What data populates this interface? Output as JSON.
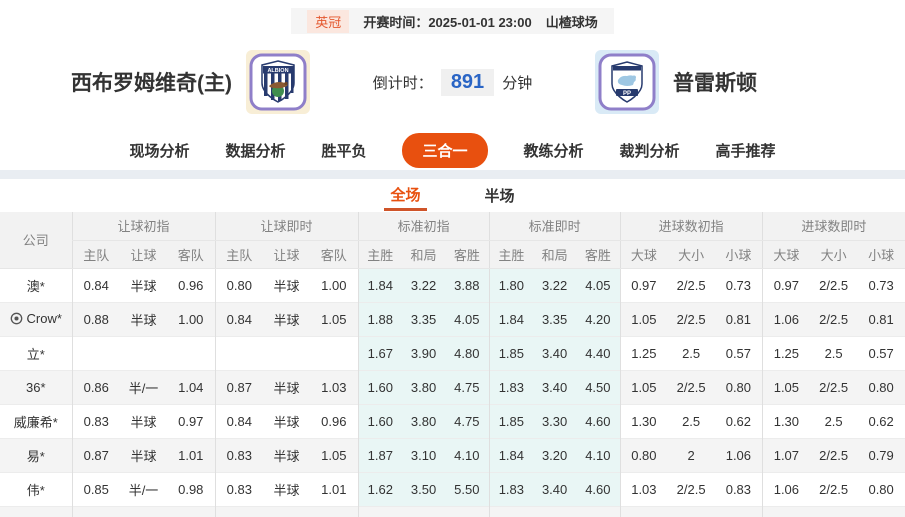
{
  "colors": {
    "accent": "#e8500f",
    "link_blue": "#2a65c5",
    "highlight_cyan": "#e9f6f5",
    "badge_bg": "#fbe7df"
  },
  "top_bar": {
    "league": "英冠",
    "kickoff_label": "开赛时间：",
    "kickoff_time": "2025-01-01 23:00",
    "venue": "山楂球场"
  },
  "match": {
    "home_name": "西布罗姆维奇(主)",
    "away_name": "普雷斯顿",
    "countdown_label": "倒计时：",
    "countdown_value": "891",
    "countdown_unit": "分钟"
  },
  "nav": {
    "items": [
      {
        "label": "现场分析",
        "active": false
      },
      {
        "label": "数据分析",
        "active": false
      },
      {
        "label": "胜平负",
        "active": false
      },
      {
        "label": "三合一",
        "active": true
      },
      {
        "label": "教练分析",
        "active": false
      },
      {
        "label": "裁判分析",
        "active": false
      },
      {
        "label": "高手推荐",
        "active": false
      }
    ]
  },
  "subtabs": {
    "items": [
      {
        "label": "全场",
        "active": true
      },
      {
        "label": "半场",
        "active": false
      }
    ]
  },
  "table": {
    "company_header": "公司",
    "groups": [
      {
        "label": "让球初指",
        "cols": [
          "主队",
          "让球",
          "客队"
        ]
      },
      {
        "label": "让球即时",
        "cols": [
          "主队",
          "让球",
          "客队"
        ]
      },
      {
        "label": "标准初指",
        "cols": [
          "主胜",
          "和局",
          "客胜"
        ]
      },
      {
        "label": "标准即时",
        "cols": [
          "主胜",
          "和局",
          "客胜"
        ]
      },
      {
        "label": "进球数初指",
        "cols": [
          "大球",
          "大小",
          "小球"
        ]
      },
      {
        "label": "进球数即时",
        "cols": [
          "大球",
          "大小",
          "小球"
        ]
      }
    ],
    "rows": [
      {
        "company": "澳*",
        "has_icon": false,
        "handicap_initial": [
          "0.84",
          "半球",
          "0.96"
        ],
        "handicap_live": [
          "0.80",
          "半球",
          "1.00"
        ],
        "std_initial": [
          "1.84",
          "3.22",
          "3.88"
        ],
        "std_live": [
          "1.80",
          "3.22",
          "4.05"
        ],
        "goals_initial": [
          "0.97",
          "2/2.5",
          "0.73"
        ],
        "goals_live": [
          "0.97",
          "2/2.5",
          "0.73"
        ]
      },
      {
        "company": "Crow*",
        "has_icon": true,
        "handicap_initial": [
          "0.88",
          "半球",
          "1.00"
        ],
        "handicap_live": [
          "0.84",
          "半球",
          "1.05"
        ],
        "std_initial": [
          "1.88",
          "3.35",
          "4.05"
        ],
        "std_live": [
          "1.84",
          "3.35",
          "4.20"
        ],
        "goals_initial": [
          "1.05",
          "2/2.5",
          "0.81"
        ],
        "goals_live": [
          "1.06",
          "2/2.5",
          "0.81"
        ]
      },
      {
        "company": "立*",
        "has_icon": false,
        "handicap_initial": [
          "",
          "",
          ""
        ],
        "handicap_live": [
          "",
          "",
          ""
        ],
        "std_initial": [
          "1.67",
          "3.90",
          "4.80"
        ],
        "std_live": [
          "1.85",
          "3.40",
          "4.40"
        ],
        "goals_initial": [
          "1.25",
          "2.5",
          "0.57"
        ],
        "goals_live": [
          "1.25",
          "2.5",
          "0.57"
        ]
      },
      {
        "company": "36*",
        "has_icon": false,
        "handicap_initial": [
          "0.86",
          "半/一",
          "1.04"
        ],
        "handicap_live": [
          "0.87",
          "半球",
          "1.03"
        ],
        "std_initial": [
          "1.60",
          "3.80",
          "4.75"
        ],
        "std_live": [
          "1.83",
          "3.40",
          "4.50"
        ],
        "goals_initial": [
          "1.05",
          "2/2.5",
          "0.80"
        ],
        "goals_live": [
          "1.05",
          "2/2.5",
          "0.80"
        ]
      },
      {
        "company": "威廉希*",
        "has_icon": false,
        "handicap_initial": [
          "0.83",
          "半球",
          "0.97"
        ],
        "handicap_live": [
          "0.84",
          "半球",
          "0.96"
        ],
        "std_initial": [
          "1.60",
          "3.80",
          "4.75"
        ],
        "std_live": [
          "1.85",
          "3.30",
          "4.60"
        ],
        "goals_initial": [
          "1.30",
          "2.5",
          "0.62"
        ],
        "goals_live": [
          "1.30",
          "2.5",
          "0.62"
        ]
      },
      {
        "company": "易*",
        "has_icon": false,
        "handicap_initial": [
          "0.87",
          "半球",
          "1.01"
        ],
        "handicap_live": [
          "0.83",
          "半球",
          "1.05"
        ],
        "std_initial": [
          "1.87",
          "3.10",
          "4.10"
        ],
        "std_live": [
          "1.84",
          "3.20",
          "4.10"
        ],
        "goals_initial": [
          "0.80",
          "2",
          "1.06"
        ],
        "goals_live": [
          "1.07",
          "2/2.5",
          "0.79"
        ]
      },
      {
        "company": "伟*",
        "has_icon": false,
        "handicap_initial": [
          "0.85",
          "半/一",
          "0.98"
        ],
        "handicap_live": [
          "0.83",
          "半球",
          "1.01"
        ],
        "std_initial": [
          "1.62",
          "3.50",
          "5.50"
        ],
        "std_live": [
          "1.83",
          "3.40",
          "4.60"
        ],
        "goals_initial": [
          "1.03",
          "2/2.5",
          "0.83"
        ],
        "goals_live": [
          "1.06",
          "2/2.5",
          "0.80"
        ]
      }
    ]
  }
}
